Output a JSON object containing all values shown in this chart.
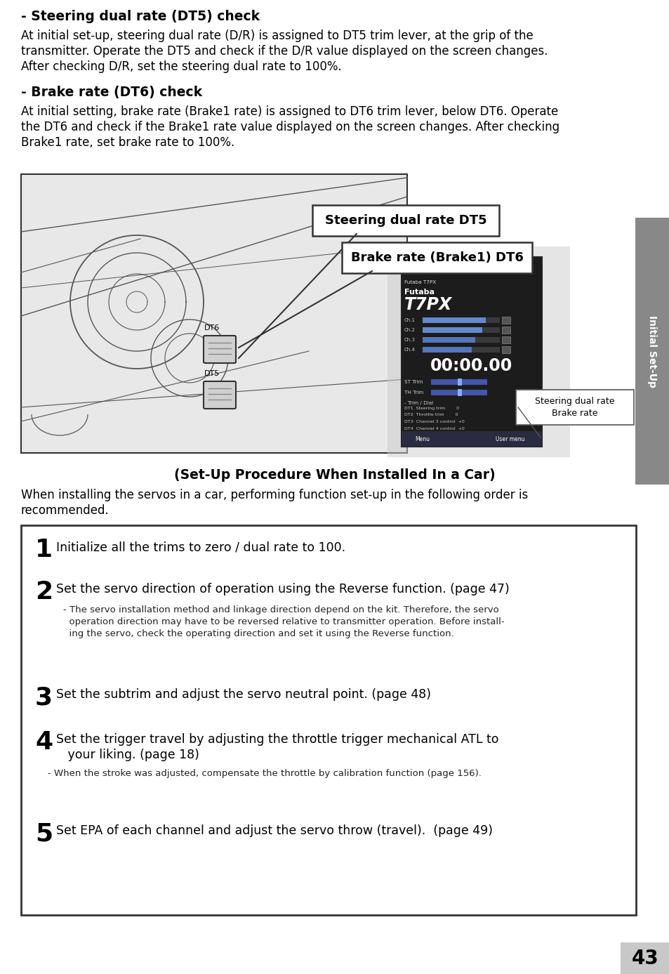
{
  "bg_color": "#ffffff",
  "page_number": "43",
  "sidebar_color": "#888888",
  "sidebar_text": "Initial Set-Up",
  "section1_heading": "- Steering dual rate (DT5) check",
  "section1_body_lines": [
    "At initial set-up, steering dual rate (D/R) is assigned to DT5 trim lever, at the grip of the",
    "transmitter. Operate the DT5 and check if the D/R value displayed on the screen changes.",
    "After checking D/R, set the steering dual rate to 100%."
  ],
  "section2_heading": "- Brake rate (DT6) check",
  "section2_body_lines": [
    "At initial setting, brake rate (Brake1 rate) is assigned to DT6 trim lever, below DT6. Operate",
    "the DT6 and check if the Brake1 rate value displayed on the screen changes. After checking",
    "Brake1 rate, set brake rate to 100%."
  ],
  "callout1_text": "Steering dual rate DT5",
  "callout2_text": "Brake rate (Brake1) DT6",
  "small_callout_line1": "Steering dual rate",
  "small_callout_line2": "Brake rate",
  "setup_heading": "(Set-Up Procedure When Installed In a Car)",
  "setup_intro_lines": [
    "When installing the servos in a car, performing function set-up in the following order is",
    "recommended."
  ],
  "step1_text": "Initialize all the trims to zero / dual rate to 100.",
  "step2_text": "Set the servo direction of operation using the Reverse function. (page 47)",
  "step2_sub": [
    "- The servo installation method and linkage direction depend on the kit. Therefore, the servo",
    "  operation direction may have to be reversed relative to transmitter operation. Before install-",
    "  ing the servo, check the operating direction and set it using the Reverse function."
  ],
  "step3_text": "Set the subtrim and adjust the servo neutral point. (page 48)",
  "step4_text_line1": "Set the trigger travel by adjusting the throttle trigger mechanical ATL to",
  "step4_text_line2": "   your liking. (page 18)",
  "step4_sub": "- When the stroke was adjusted, compensate the throttle by calibration function (page 156).",
  "step5_text": "Set EPA of each channel and adjust the servo throw (travel).  (page 49)",
  "box_border_color": "#333333",
  "box_bg_color": "#ffffff"
}
